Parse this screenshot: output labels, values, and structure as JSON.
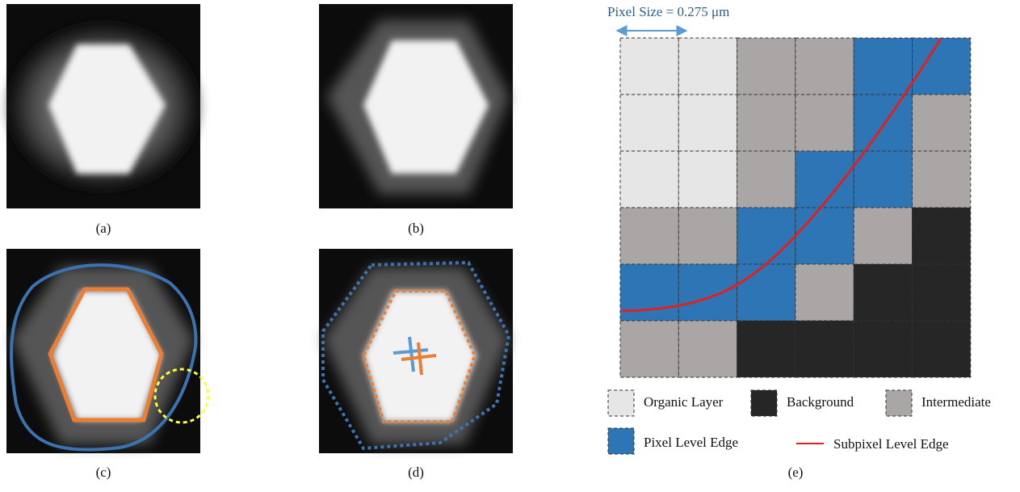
{
  "panel_labels": [
    "(a)",
    "(b)",
    "(c)",
    "(d)",
    "(e)"
  ],
  "pixel_size": "Pixel Size = 0.275 μm",
  "legend": [
    "Organic Layer",
    "Background",
    "Intermediate",
    "Pixel Level Edge",
    "Subpixel Level Edge"
  ]
}
